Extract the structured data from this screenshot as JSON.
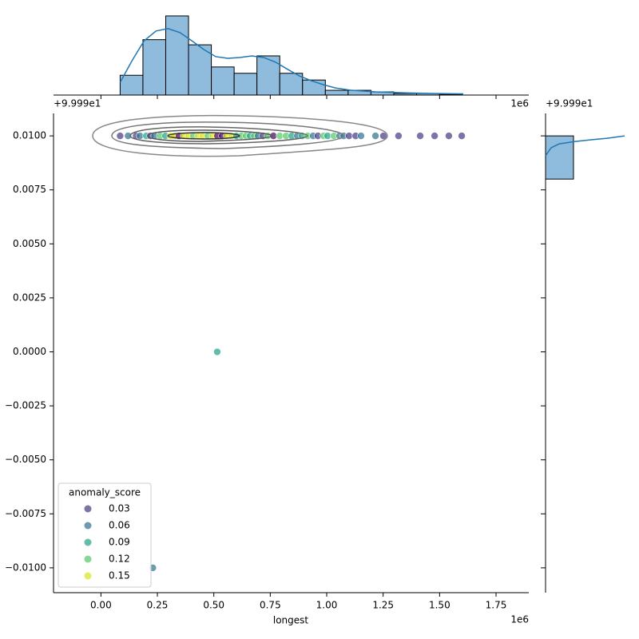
{
  "chart_data": [
    {
      "type": "scatter",
      "x_label": "longest",
      "x_offset_label": "1e6",
      "y_offset_label": "+9.999e1",
      "x": [
        0.085,
        0.12,
        0.156,
        0.173,
        0.201,
        0.219,
        0.237,
        0.262,
        0.286,
        0.308,
        0.325,
        0.346,
        0.368,
        0.389,
        0.41,
        0.431,
        0.452,
        0.474,
        0.495,
        0.516,
        0.537,
        0.558,
        0.58,
        0.601,
        0.622,
        0.643,
        0.661,
        0.679,
        0.696,
        0.718,
        0.739,
        0.764,
        0.792,
        0.82,
        0.845,
        0.87,
        0.891,
        0.916,
        0.94,
        0.961,
        0.986,
        1.004,
        1.032,
        1.057,
        1.075,
        1.099,
        1.128,
        1.152,
        1.216,
        1.251,
        1.318,
        1.414,
        1.478,
        1.541,
        1.598,
        0.515,
        0.23
      ],
      "y": [
        0.01,
        0.01,
        0.01,
        0.01,
        0.01,
        0.01,
        0.01,
        0.01,
        0.01,
        0.01,
        0.01,
        0.01,
        0.01,
        0.01,
        0.01,
        0.01,
        0.01,
        0.01,
        0.01,
        0.01,
        0.01,
        0.01,
        0.01,
        0.01,
        0.01,
        0.01,
        0.01,
        0.01,
        0.01,
        0.01,
        0.01,
        0.01,
        0.01,
        0.01,
        0.01,
        0.01,
        0.01,
        0.01,
        0.01,
        0.01,
        0.01,
        0.01,
        0.01,
        0.01,
        0.01,
        0.01,
        0.01,
        0.01,
        0.01,
        0.01,
        0.01,
        0.01,
        0.01,
        0.01,
        0.01,
        0,
        -0.01
      ],
      "colors": [
        "#453781",
        "#2d708e",
        "#453781",
        "#2d708e",
        "#20a386",
        "#453781",
        "#2d708e",
        "#56c667",
        "#20a386",
        "#dce319",
        "#dce319",
        "#440154",
        "#dce319",
        "#dce319",
        "#56c667",
        "#dce319",
        "#dce319",
        "#56c667",
        "#dce319",
        "#440154",
        "#440154",
        "#dce319",
        "#dce319",
        "#20a386",
        "#56c667",
        "#56c667",
        "#20a386",
        "#56c667",
        "#2d708e",
        "#453781",
        "#56c667",
        "#440154",
        "#56c667",
        "#56c667",
        "#20a386",
        "#2d708e",
        "#20a386",
        "#56c667",
        "#2d708e",
        "#453781",
        "#56c667",
        "#20a386",
        "#56c667",
        "#2d708e",
        "#2d708e",
        "#453781",
        "#453781",
        "#2d708e",
        "#2d708e",
        "#453781",
        "#453781",
        "#453781",
        "#453781",
        "#453781",
        "#453781",
        "#20a386",
        "#2d708e"
      ],
      "xlim": [
        -0.21,
        1.895
      ],
      "ylim": [
        -0.01115,
        0.01104
      ],
      "xticks": [
        {
          "value": 0,
          "label": "0.00"
        },
        0.25,
        {
          "value": 0.5,
          "label": "0.50"
        },
        0.75,
        {
          "value": 1,
          "label": "1.00"
        },
        1.25,
        {
          "value": 1.5,
          "label": "1.50"
        },
        1.75
      ],
      "yticks": [
        {
          "value": -0.01,
          "label": "−0.0100"
        },
        {
          "value": -0.0075,
          "label": "−0.0075"
        },
        {
          "value": -0.005,
          "label": "−0.0050"
        },
        {
          "value": -0.0025,
          "label": "−0.0025"
        },
        {
          "value": 0,
          "label": "0.0000"
        },
        0.0025,
        {
          "value": 0.005,
          "label": "0.0050"
        },
        0.0075,
        {
          "value": 0.01,
          "label": "0.0100"
        }
      ],
      "legend": {
        "title": "anomaly_score",
        "values": [
          0.03,
          0.06,
          0.09,
          0.12,
          0.15
        ],
        "colors": [
          "#453781",
          "#2d708e",
          "#20a386",
          "#56c667",
          "#dce319"
        ]
      },
      "legend_position": "lower left"
    },
    {
      "type": "histogram",
      "orientation": "vertical",
      "offset_label": "1e6",
      "color": "#8fbbdc",
      "kde_color": "#1f77b4",
      "bins": [
        0.085,
        0.186,
        0.287,
        0.388,
        0.489,
        0.59,
        0.691,
        0.792,
        0.893,
        0.994,
        1.095,
        1.196,
        1.297,
        1.398,
        1.499,
        1.6
      ],
      "counts": [
        5,
        14,
        20,
        12.7,
        7.1,
        5.5,
        9.9,
        5.5,
        3.8,
        1.2,
        1.2,
        0.8,
        0.4,
        0.4,
        0.2
      ],
      "count_lim": [
        0,
        21.2
      ],
      "kde": {
        "x": [
          0.085,
          0.138,
          0.191,
          0.244,
          0.297,
          0.35,
          0.403,
          0.456,
          0.509,
          0.562,
          0.615,
          0.668,
          0.721,
          0.774,
          0.827,
          0.88,
          0.933,
          0.986,
          1.039,
          1.11,
          1.216,
          1.322,
          1.463,
          1.605
        ],
        "density": [
          3.2,
          8.7,
          13.7,
          16.2,
          16.8,
          15.8,
          13.7,
          11.5,
          9.7,
          9.3,
          9.5,
          9.9,
          9.5,
          8.3,
          6.5,
          4.8,
          3.6,
          2.6,
          1.8,
          1.2,
          0.8,
          0.6,
          0.4,
          0.3
        ]
      }
    },
    {
      "type": "histogram",
      "orientation": "horizontal",
      "offset_label": "+9.999e1",
      "color": "#8fbbdc",
      "kde_color": "#1f77b4",
      "bins": [
        0.008,
        0.01
      ],
      "counts": [
        1
      ],
      "count_lim": [
        0,
        2.83
      ],
      "kde": {
        "y": [
          0.00908,
          0.00945,
          0.00963,
          0.00974,
          0.00982,
          0.00989,
          0.01
        ],
        "density": [
          0,
          0.2,
          0.49,
          1.06,
          1.63,
          2.2,
          2.83
        ]
      }
    }
  ]
}
